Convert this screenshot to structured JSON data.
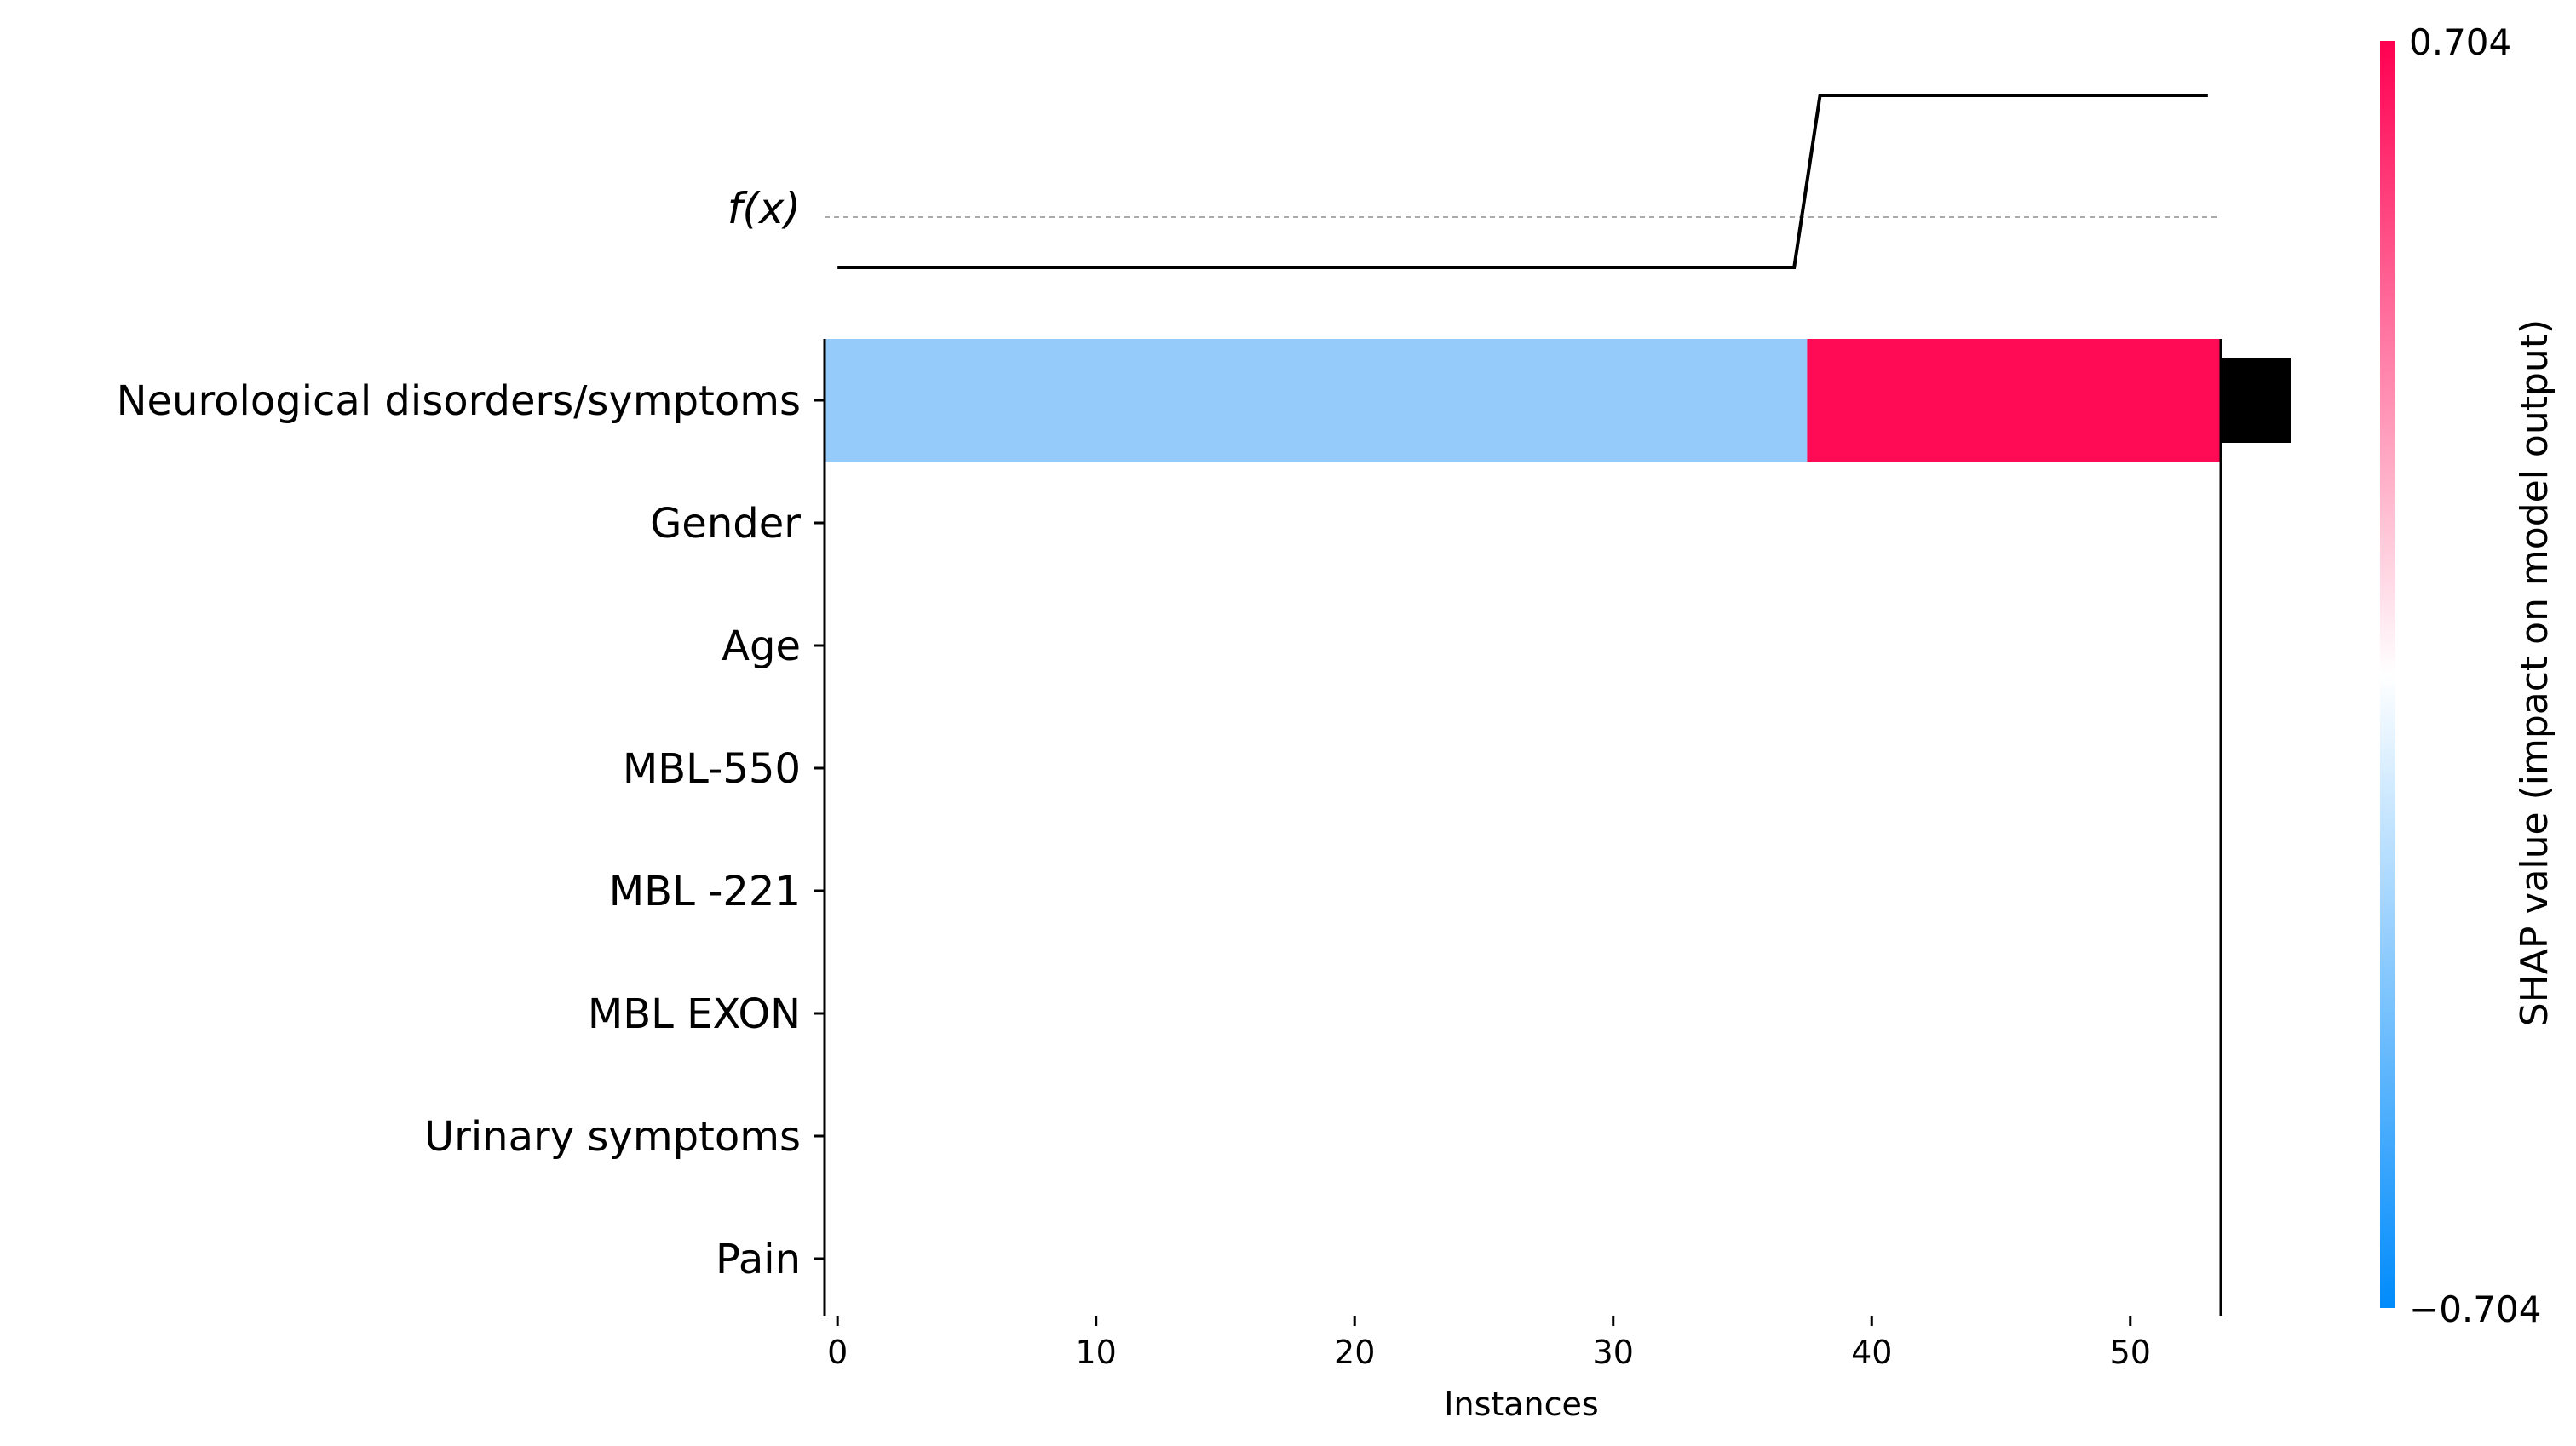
{
  "chart_data": {
    "type": "heatmap",
    "fx_label": "f(x)",
    "xlabel": "Instances",
    "xlim": [
      -0.5,
      53.5
    ],
    "x_ticks": [
      0,
      10,
      20,
      30,
      40,
      50
    ],
    "x_tick_labels": [
      "0",
      "10",
      "20",
      "30",
      "40",
      "50"
    ],
    "features": [
      "Neurological disorders/symptoms",
      "Gender",
      "Age",
      "MBL-550",
      "MBL -221",
      "MBL EXON",
      "Urinary symptoms",
      "Pain"
    ],
    "heatmap_row": {
      "feature": "Neurological disorders/symptoms",
      "segments": [
        {
          "from": -0.5,
          "to": 37.5,
          "shap": -0.3,
          "color": "#94cbfa"
        },
        {
          "from": 37.5,
          "to": 53.5,
          "shap": 0.704,
          "color": "#ff0b55"
        }
      ]
    },
    "fx_line": {
      "low_x": [
        0,
        37
      ],
      "high_x": [
        38,
        53
      ],
      "low_level": 0,
      "high_level": 1
    },
    "importance_bars": [
      {
        "feature": "Neurological disorders/symptoms",
        "value": 1,
        "color": "#000000"
      }
    ],
    "colorbar": {
      "title": "SHAP value (impact on model output)",
      "min": -0.704,
      "max": 0.704,
      "min_label": "−0.704",
      "max_label": "0.704",
      "low_color": "#008bfb",
      "mid_color": "#ffffff",
      "high_color": "#ff0051"
    }
  }
}
